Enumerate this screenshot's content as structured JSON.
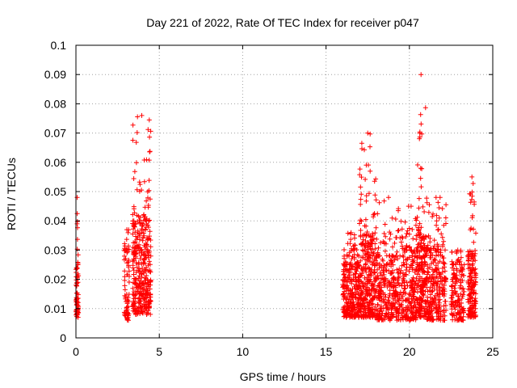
{
  "chart_data": {
    "type": "scatter",
    "title": "Day 221 of 2022, Rate Of TEC Index for receiver p047",
    "xlabel": "GPS time / hours",
    "ylabel": "ROTI / TECUs",
    "xlim": [
      0,
      25
    ],
    "ylim": [
      0,
      0.1
    ],
    "x_ticks": [
      "0",
      "5",
      "10",
      "15",
      "20",
      "25"
    ],
    "y_ticks": [
      "0",
      "0.01",
      "0.02",
      "0.03",
      "0.04",
      "0.05",
      "0.06",
      "0.07",
      "0.08",
      "0.09",
      "0.1"
    ],
    "grid": true,
    "legend": "none",
    "marker": "+",
    "color": "#ff0000",
    "series": [
      {
        "clusters": [
          {
            "x": [
              0.0,
              0.15
            ],
            "y_core": [
              0.007,
              0.025
            ],
            "y_max": 0.048,
            "n": 70
          },
          {
            "x": [
              2.9,
              3.2
            ],
            "y_core": [
              0.006,
              0.03
            ],
            "y_max": 0.037,
            "n": 70
          },
          {
            "x": [
              3.4,
              4.5
            ],
            "y_core": [
              0.008,
              0.04
            ],
            "y_max": 0.076,
            "n": 380
          },
          {
            "x": [
              16.0,
              17.0
            ],
            "y_core": [
              0.007,
              0.025
            ],
            "y_max": 0.036,
            "n": 280
          },
          {
            "x": [
              17.0,
              18.0
            ],
            "y_core": [
              0.007,
              0.035
            ],
            "y_max": 0.07,
            "n": 320
          },
          {
            "x": [
              18.0,
              19.5
            ],
            "y_core": [
              0.006,
              0.028
            ],
            "y_max": 0.048,
            "n": 300
          },
          {
            "x": [
              19.5,
              20.4
            ],
            "y_core": [
              0.006,
              0.03
            ],
            "y_max": 0.045,
            "n": 200
          },
          {
            "x": [
              20.4,
              21.0
            ],
            "y_core": [
              0.007,
              0.035
            ],
            "y_max": 0.09,
            "n": 220
          },
          {
            "x": [
              21.0,
              22.2
            ],
            "y_core": [
              0.006,
              0.03
            ],
            "y_max": 0.048,
            "n": 280
          },
          {
            "x": [
              22.5,
              23.3
            ],
            "y_core": [
              0.006,
              0.025
            ],
            "y_max": 0.03,
            "n": 150
          },
          {
            "x": [
              23.5,
              24.0
            ],
            "y_core": [
              0.007,
              0.028
            ],
            "y_max": 0.055,
            "n": 170
          }
        ]
      }
    ]
  }
}
